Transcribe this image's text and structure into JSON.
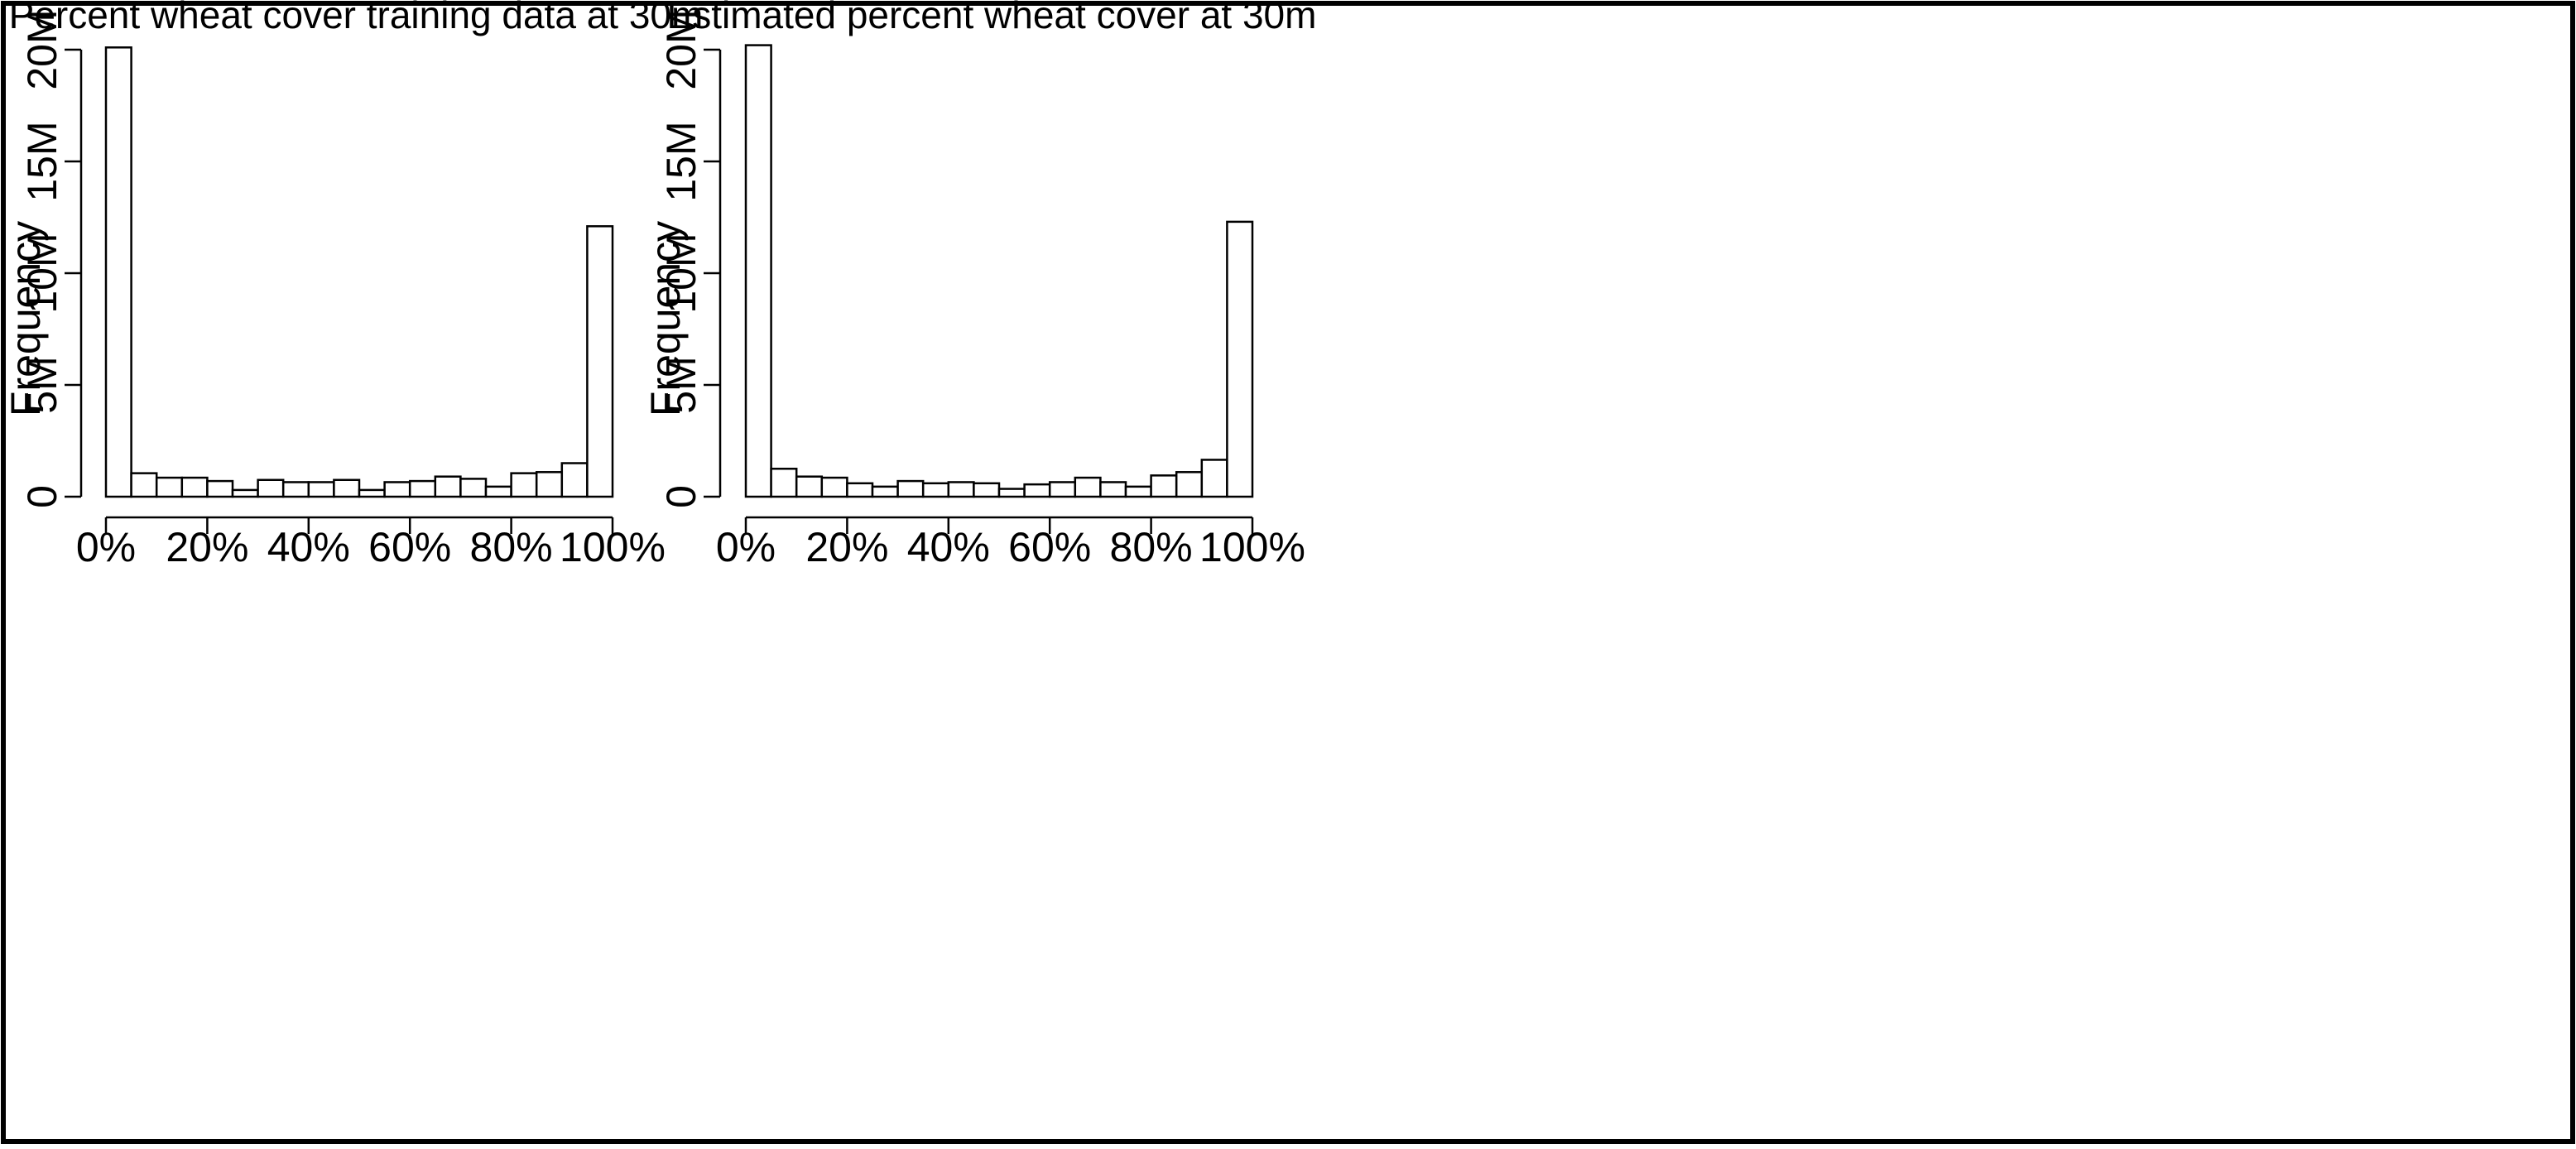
{
  "chart_data": [
    {
      "type": "bar",
      "title": "Percent wheat cover training data at 30m",
      "xlabel": "",
      "ylabel": "Frequency",
      "xlim": [
        0,
        100
      ],
      "ylim": [
        0,
        20000000
      ],
      "grid": false,
      "x_ticks": [
        "0%",
        "20%",
        "40%",
        "60%",
        "80%",
        "100%"
      ],
      "y_ticks": [
        "0",
        "5M",
        "10M",
        "15M",
        "20M"
      ],
      "categories": [
        "0-5%",
        "5-10%",
        "10-15%",
        "15-20%",
        "20-25%",
        "25-30%",
        "30-35%",
        "35-40%",
        "40-45%",
        "45-50%",
        "50-55%",
        "55-60%",
        "60-65%",
        "65-70%",
        "70-75%",
        "75-80%",
        "80-85%",
        "85-90%",
        "90-95%",
        "95-100%"
      ],
      "values": [
        20100000,
        1050000,
        850000,
        850000,
        700000,
        300000,
        750000,
        650000,
        650000,
        750000,
        300000,
        650000,
        700000,
        900000,
        800000,
        450000,
        1050000,
        1100000,
        1500000,
        12100000
      ]
    },
    {
      "type": "bar",
      "title": "Estimated percent wheat cover at 30m",
      "xlabel": "",
      "ylabel": "Frequency",
      "xlim": [
        0,
        100
      ],
      "ylim": [
        0,
        20000000
      ],
      "grid": false,
      "x_ticks": [
        "0%",
        "20%",
        "40%",
        "60%",
        "80%",
        "100%"
      ],
      "y_ticks": [
        "0",
        "5M",
        "10M",
        "15M",
        "20M"
      ],
      "categories": [
        "0-5%",
        "5-10%",
        "10-15%",
        "15-20%",
        "20-25%",
        "25-30%",
        "30-35%",
        "35-40%",
        "40-45%",
        "45-50%",
        "50-55%",
        "55-60%",
        "60-65%",
        "65-70%",
        "70-75%",
        "75-80%",
        "80-85%",
        "85-90%",
        "90-95%",
        "95-100%"
      ],
      "values": [
        20200000,
        1250000,
        900000,
        850000,
        600000,
        450000,
        700000,
        600000,
        650000,
        600000,
        350000,
        550000,
        650000,
        850000,
        650000,
        450000,
        950000,
        1100000,
        1650000,
        12300000
      ]
    }
  ]
}
